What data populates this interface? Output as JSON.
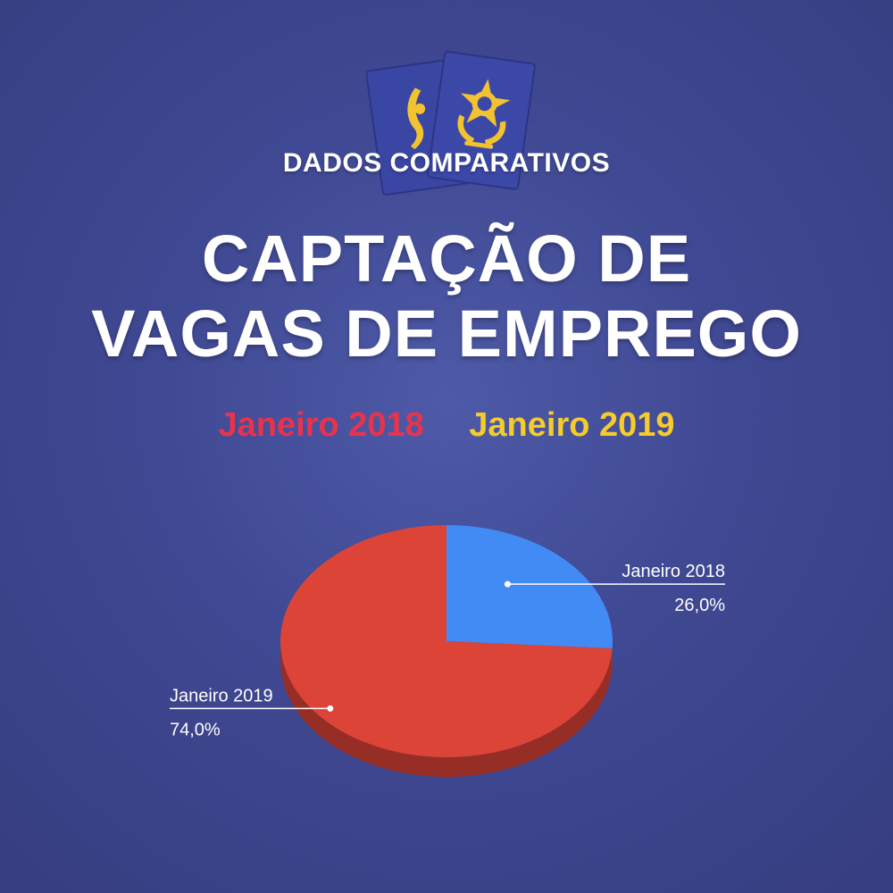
{
  "header": {
    "kicker": "DADOS COMPARATIVOS",
    "title_line1": "CAPTAÇÃO DE",
    "title_line2": "VAGAS DE EMPREGO"
  },
  "legend": {
    "item_2018": "Janeiro 2018",
    "item_2019": "Janeiro 2019",
    "color_2018": "#e8334c",
    "color_2019": "#f5cc2c"
  },
  "chart_data": {
    "type": "pie",
    "slices": [
      {
        "label": "Janeiro 2018",
        "value": 26.0,
        "display": "26,0%",
        "color": "#428bf5"
      },
      {
        "label": "Janeiro 2019",
        "value": 74.0,
        "display": "74,0%",
        "color": "#dc4438"
      }
    ],
    "style": "3d"
  },
  "logo": {
    "icon": "brazil-coat-of-arms-booklet-icon",
    "colors": {
      "booklet": "#3a45a0",
      "emblem": "#f2c230"
    }
  }
}
